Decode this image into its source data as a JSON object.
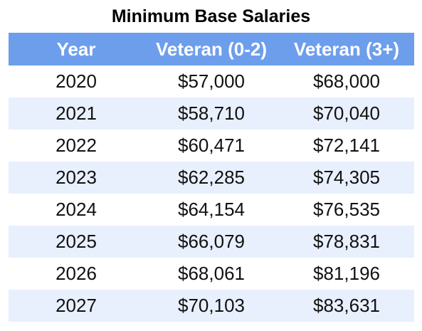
{
  "chart_data": {
    "type": "table",
    "title": "Minimum Base Salaries",
    "columns": [
      "Year",
      "Veteran (0-2)",
      "Veteran (3+)"
    ],
    "rows": [
      [
        "2020",
        "$57,000",
        "$68,000"
      ],
      [
        "2021",
        "$58,710",
        "$70,040"
      ],
      [
        "2022",
        "$60,471",
        "$72,141"
      ],
      [
        "2023",
        "$62,285",
        "$74,305"
      ],
      [
        "2024",
        "$64,154",
        "$76,535"
      ],
      [
        "2025",
        "$66,079",
        "$78,831"
      ],
      [
        "2026",
        "$68,061",
        "$81,196"
      ],
      [
        "2027",
        "$70,103",
        "$83,631"
      ]
    ]
  },
  "colors": {
    "header_bg": "#6d9eeb",
    "header_text": "#ffffff",
    "row_bg": "#ffffff",
    "row_alt_bg": "#e8f0fe"
  }
}
